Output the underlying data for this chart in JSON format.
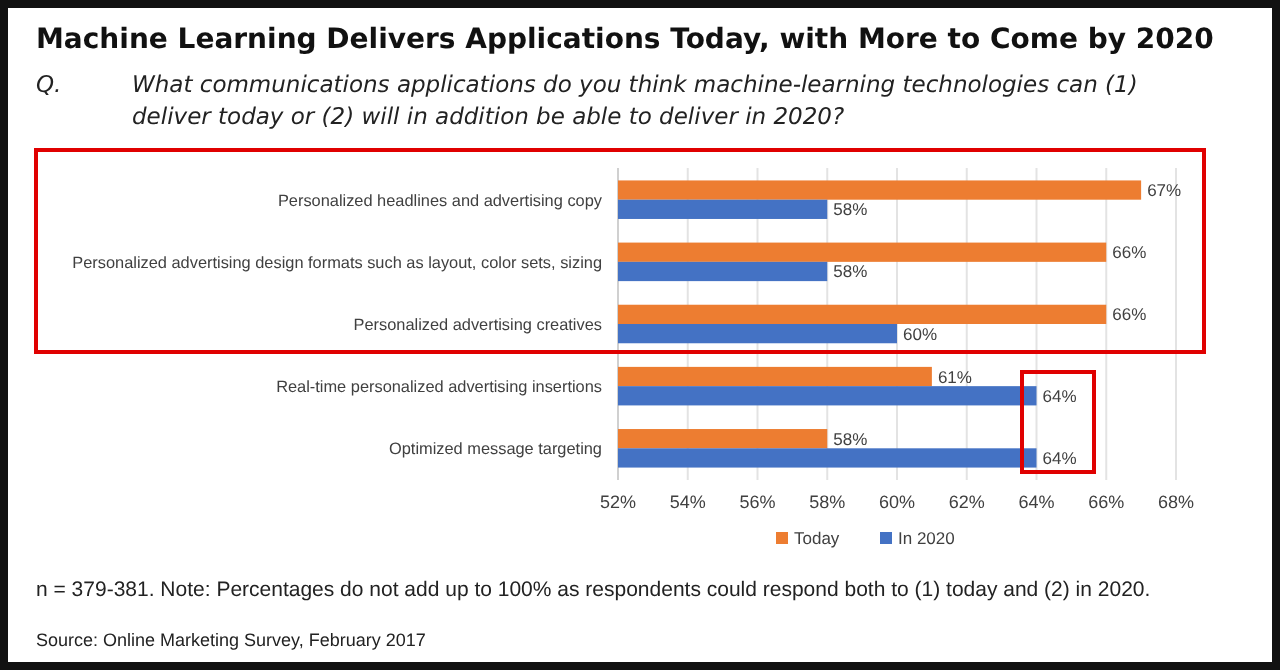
{
  "chart_data": {
    "type": "bar",
    "orientation": "horizontal",
    "title": "Machine Learning Delivers Applications Today, with More to Come by 2020",
    "subtitle": "Q. What communications applications do you think machine-learning technologies can (1) deliver today or (2) will in addition be able to deliver in 2020?",
    "categories": [
      "Personalized headlines and advertising copy",
      "Personalized advertising design formats such as layout, color sets, sizing",
      "Personalized advertising creatives",
      "Real-time personalized advertising insertions",
      "Optimized message targeting"
    ],
    "series": [
      {
        "name": "Today",
        "color": "#ed7d31",
        "values": [
          67,
          66,
          66,
          61,
          58
        ],
        "value_labels": [
          "67%",
          "66%",
          "66%",
          "61%",
          "58%"
        ]
      },
      {
        "name": "In 2020",
        "color": "#4472c4",
        "values": [
          58,
          58,
          60,
          64,
          64
        ],
        "value_labels": [
          "58%",
          "58%",
          "60%",
          "64%",
          "64%"
        ]
      }
    ],
    "xlim": [
      52,
      68
    ],
    "xticks": [
      {
        "value": 52,
        "label": "52%"
      },
      {
        "value": 54,
        "label": "54%"
      },
      {
        "value": 56,
        "label": "56%"
      },
      {
        "value": 58,
        "label": "58%"
      },
      {
        "value": 60,
        "label": "60%"
      },
      {
        "value": 62,
        "label": "62%"
      },
      {
        "value": 64,
        "label": "64%"
      },
      {
        "value": 66,
        "label": "66%"
      },
      {
        "value": 68,
        "label": "68%"
      }
    ],
    "grid": "x",
    "legend": "bottom",
    "annotations": [
      "n = 379-381. Note: Percentages do not add up to 100% as respondents could respond both to (1) today and (2) in 2020.",
      "Source: Online Marketing Survey, February 2017"
    ]
  }
}
